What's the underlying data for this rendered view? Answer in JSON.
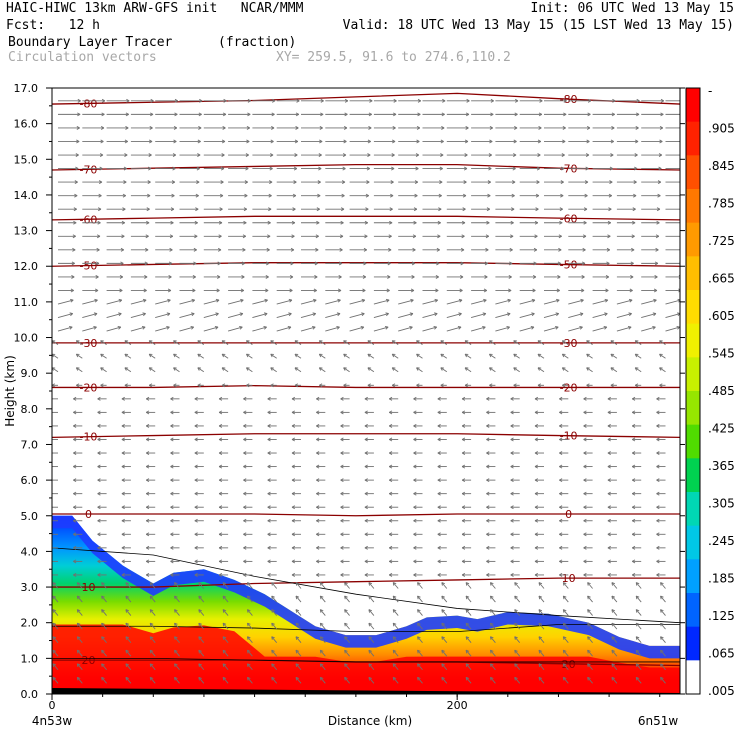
{
  "header": {
    "line1_left": "HAIC-HIWC 13km ARW-GFS init   NCAR/MMM",
    "line1_right": "Init: 06 UTC Wed 13 May 15",
    "line2_left": "Fcst:   12 h",
    "line2_right": "Valid: 18 UTC Wed 13 May 15 (15 LST Wed 13 May 15)",
    "field_name": "Boundary Layer Tracer",
    "field_units": "(fraction)",
    "overlay_name": "Circulation vectors",
    "xy_range": "XY= 259.5, 91.6 to 274.6,110.2"
  },
  "chart_data": {
    "type": "cross-section",
    "ylabel": "Height (km)",
    "xlabel": "Distance (km)",
    "xlim": [
      0,
      310
    ],
    "ylim": [
      0,
      17
    ],
    "y_ticks": [
      "0.0",
      "1.0",
      "2.0",
      "3.0",
      "4.0",
      "5.0",
      "6.0",
      "7.0",
      "8.0",
      "9.0",
      "10.0",
      "11.0",
      "12.0",
      "13.0",
      "14.0",
      "15.0",
      "16.0",
      "17.0"
    ],
    "x_ticks": [
      {
        "value": 0,
        "label": "0"
      },
      {
        "value": 200,
        "label": "200"
      }
    ],
    "x_end_labels": {
      "left": "4n53w",
      "right": "6n51w"
    },
    "colorbar": {
      "labels": [
        "-",
        ".905",
        ".845",
        ".785",
        ".725",
        ".665",
        ".605",
        ".545",
        ".485",
        ".425",
        ".365",
        ".305",
        ".245",
        ".185",
        ".125",
        ".065",
        ".005"
      ],
      "colors": [
        "#ff0000",
        "#ff2200",
        "#ff5000",
        "#ff7800",
        "#ff9a00",
        "#ffbe00",
        "#ffdc00",
        "#f0f000",
        "#c8f000",
        "#96e600",
        "#50dc00",
        "#00d250",
        "#00d7b4",
        "#00c8e6",
        "#00a0ff",
        "#0064ff",
        "#0028ff",
        "#ffffff"
      ]
    },
    "temperature_contours": [
      {
        "label": "-80",
        "y": [
          16.55,
          16.6,
          16.65,
          16.75,
          16.85,
          16.7,
          16.55
        ]
      },
      {
        "label": "-70",
        "y": [
          14.7,
          14.75,
          14.8,
          14.85,
          14.85,
          14.75,
          14.7
        ]
      },
      {
        "label": "-60",
        "y": [
          13.3,
          13.35,
          13.4,
          13.4,
          13.4,
          13.35,
          13.3
        ]
      },
      {
        "label": "-50",
        "y": [
          12.0,
          12.05,
          12.1,
          12.1,
          12.1,
          12.05,
          12.0
        ]
      },
      {
        "label": "-30",
        "y": [
          9.85,
          9.85,
          9.85,
          9.85,
          9.85,
          9.85,
          9.85
        ]
      },
      {
        "label": "-20",
        "y": [
          8.6,
          8.6,
          8.65,
          8.6,
          8.6,
          8.6,
          8.6
        ]
      },
      {
        "label": "-10",
        "y": [
          7.2,
          7.25,
          7.3,
          7.3,
          7.3,
          7.25,
          7.2
        ]
      },
      {
        "label": "0",
        "y": [
          5.05,
          5.05,
          5.05,
          5.0,
          5.05,
          5.05,
          5.05
        ]
      },
      {
        "label": "10",
        "y": [
          3.0,
          3.0,
          3.1,
          3.15,
          3.2,
          3.25,
          3.25
        ]
      },
      {
        "label": "20",
        "y": [
          0.95,
          0.95,
          0.95,
          0.9,
          0.9,
          0.85,
          0.8
        ]
      }
    ],
    "contour_x": [
      0,
      50,
      100,
      150,
      200,
      250,
      310
    ],
    "tracer_top_x": [
      0,
      10,
      20,
      35,
      50,
      60,
      75,
      90,
      105,
      130,
      145,
      160,
      175,
      185,
      200,
      210,
      225,
      245,
      265,
      280,
      295,
      310
    ],
    "tracer_top_y": [
      5.0,
      5.0,
      4.3,
      3.6,
      3.1,
      3.4,
      3.5,
      3.2,
      2.8,
      1.9,
      1.65,
      1.65,
      1.9,
      2.15,
      2.2,
      2.1,
      2.3,
      2.25,
      2.0,
      1.6,
      1.35,
      1.35
    ]
  }
}
